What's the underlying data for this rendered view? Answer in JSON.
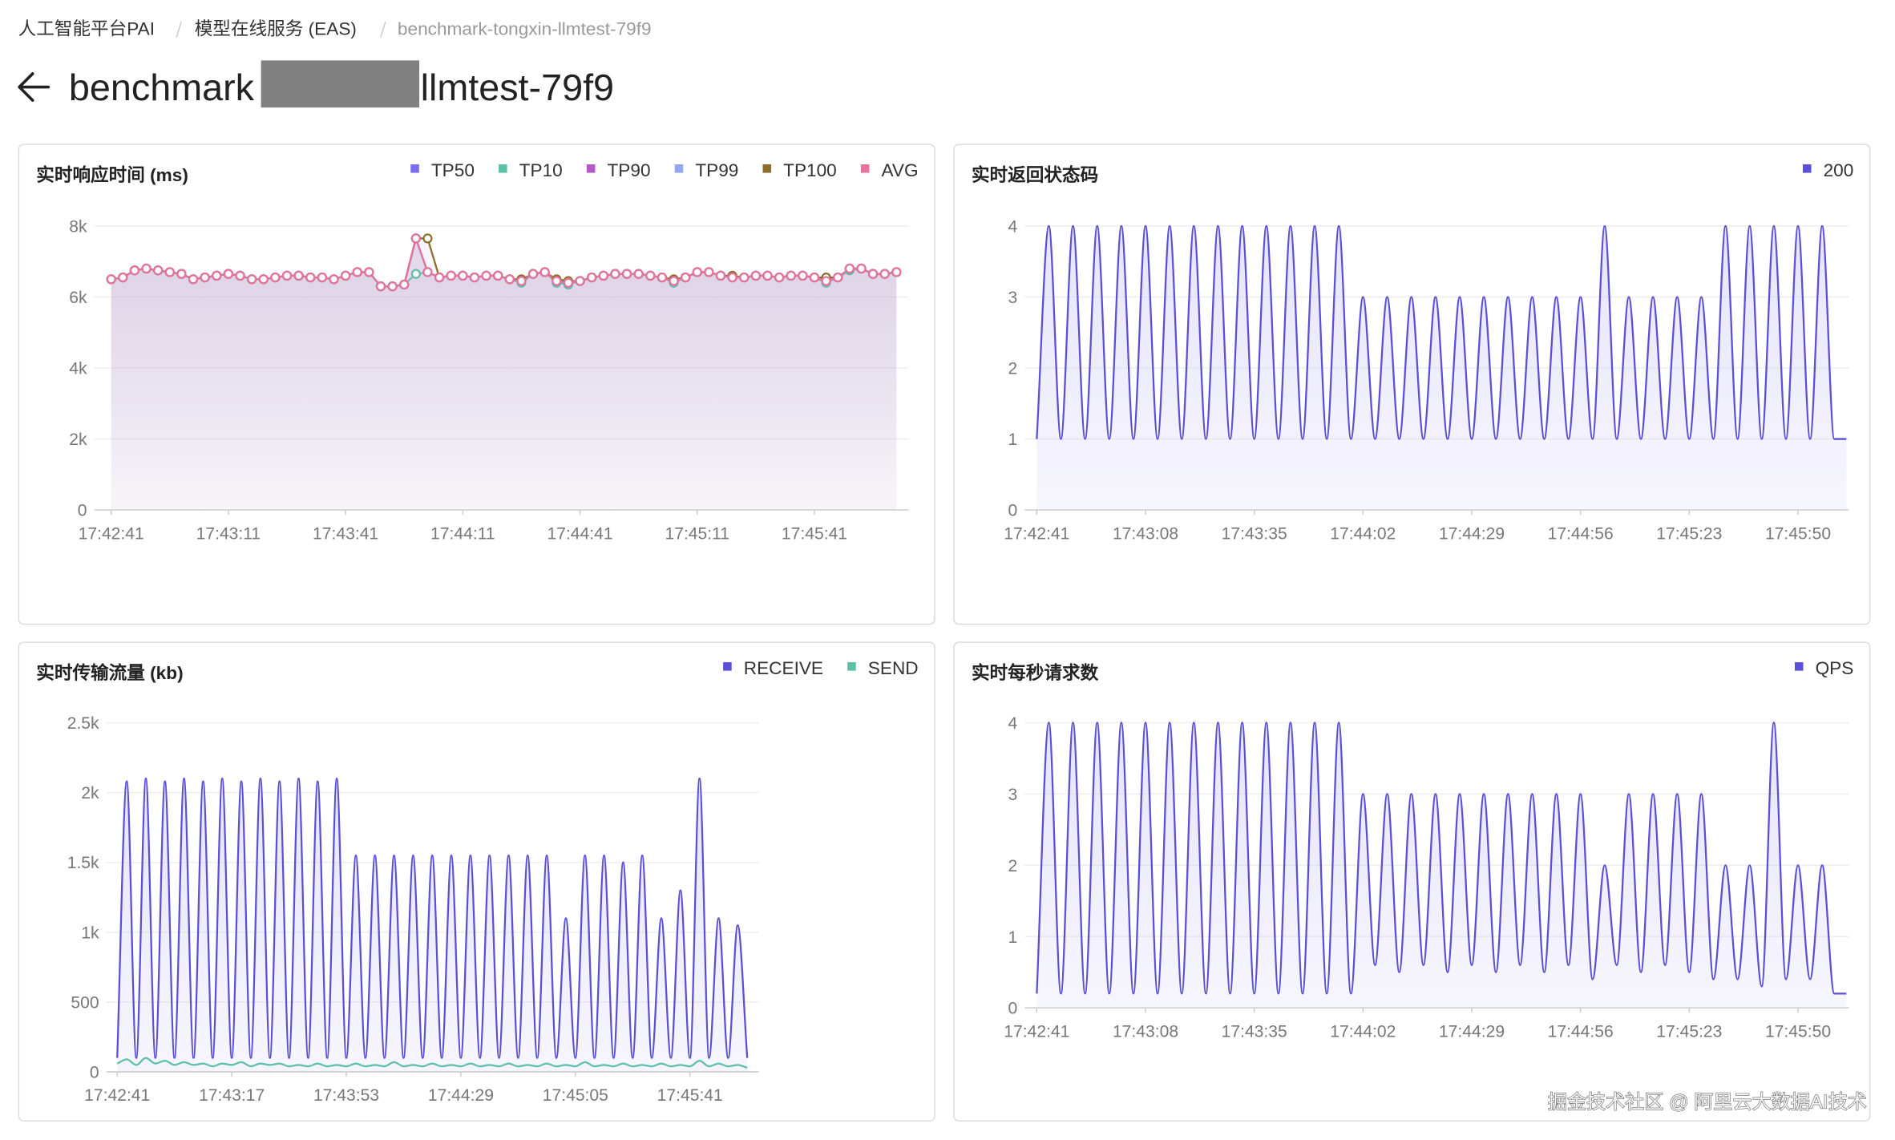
{
  "header": {
    "breadcrumb": [
      "人工智能平台PAI",
      "模型在线服务 (EAS)",
      "benchmark-tongxin-llmtest-79f9"
    ],
    "title_prefix": "benchmark",
    "title_suffix": "llmtest-79f9"
  },
  "chart_data": [
    {
      "type": "line",
      "title": "实时响应时间 (ms)",
      "markers": true,
      "area": true,
      "smooth": false,
      "grid": true,
      "categories": [
        "17:42:41",
        null,
        null,
        null,
        null,
        null,
        null,
        null,
        null,
        null,
        "17:43:11",
        null,
        null,
        null,
        null,
        null,
        null,
        null,
        null,
        null,
        "17:43:41",
        null,
        null,
        null,
        null,
        null,
        null,
        null,
        null,
        null,
        "17:44:11",
        null,
        null,
        null,
        null,
        null,
        null,
        null,
        null,
        null,
        "17:44:41",
        null,
        null,
        null,
        null,
        null,
        null,
        null,
        null,
        null,
        "17:45:11",
        null,
        null,
        null,
        null,
        null,
        null,
        null,
        null,
        null,
        "17:45:41",
        null,
        null,
        null,
        null,
        null,
        null,
        null
      ],
      "ylim": [
        0,
        8000
      ],
      "yticks": [
        0,
        {
          "value": 2000,
          "label": "2k"
        },
        {
          "value": 4000,
          "label": "4k"
        },
        {
          "value": 6000,
          "label": "6k"
        },
        {
          "value": 8000,
          "label": "8k"
        }
      ],
      "series": [
        {
          "name": "TP50",
          "color": "#7b6ff0",
          "values": [
            6500,
            6550,
            6750,
            6800,
            6750,
            6700,
            6650,
            6500,
            6550,
            6600,
            6650,
            6600,
            6500,
            6500,
            6550,
            6600,
            6600,
            6550,
            6550,
            6500,
            6600,
            6700,
            6700,
            6300,
            6300,
            6350,
            7650,
            6700,
            6550,
            6600,
            6600,
            6550,
            6600,
            6600,
            6500,
            6450,
            6650,
            6700,
            6450,
            6400,
            6450,
            6550,
            6600,
            6650,
            6650,
            6650,
            6600,
            6550,
            6450,
            6550,
            6700,
            6700,
            6600,
            6550,
            6550,
            6600,
            6600,
            6550,
            6600,
            6600,
            6550,
            6450,
            6550,
            6800,
            6800,
            6650,
            6650,
            6700
          ]
        },
        {
          "name": "TP10",
          "color": "#5cbfa8",
          "values": [
            6500,
            6550,
            6750,
            6800,
            6750,
            6700,
            6650,
            6500,
            6550,
            6600,
            6650,
            6600,
            6500,
            6500,
            6550,
            6600,
            6600,
            6550,
            6550,
            6500,
            6600,
            6700,
            6700,
            6300,
            6300,
            6350,
            6650,
            6700,
            6550,
            6600,
            6600,
            6550,
            6600,
            6600,
            6500,
            6400,
            6650,
            6700,
            6400,
            6350,
            6450,
            6550,
            6600,
            6650,
            6650,
            6650,
            6600,
            6550,
            6400,
            6550,
            6700,
            6700,
            6600,
            6550,
            6550,
            6600,
            6600,
            6550,
            6600,
            6600,
            6550,
            6400,
            6550,
            6750,
            6800,
            6650,
            6650,
            6700
          ]
        },
        {
          "name": "TP90",
          "color": "#b25cc4",
          "values": [
            6500,
            6550,
            6750,
            6800,
            6750,
            6700,
            6650,
            6500,
            6550,
            6600,
            6650,
            6600,
            6500,
            6500,
            6550,
            6600,
            6600,
            6550,
            6550,
            6500,
            6600,
            6700,
            6700,
            6300,
            6300,
            6350,
            7650,
            6700,
            6550,
            6600,
            6600,
            6550,
            6600,
            6600,
            6500,
            6450,
            6650,
            6700,
            6450,
            6400,
            6450,
            6550,
            6600,
            6650,
            6650,
            6650,
            6600,
            6550,
            6450,
            6550,
            6700,
            6700,
            6600,
            6550,
            6550,
            6600,
            6600,
            6550,
            6600,
            6600,
            6550,
            6450,
            6550,
            6800,
            6800,
            6650,
            6650,
            6700
          ]
        },
        {
          "name": "TP99",
          "color": "#8fa8f0",
          "values": [
            6500,
            6550,
            6750,
            6800,
            6750,
            6700,
            6650,
            6500,
            6550,
            6600,
            6650,
            6600,
            6500,
            6500,
            6550,
            6600,
            6600,
            6550,
            6550,
            6500,
            6600,
            6700,
            6700,
            6300,
            6300,
            6350,
            7650,
            6700,
            6550,
            6600,
            6600,
            6550,
            6600,
            6600,
            6500,
            6450,
            6650,
            6700,
            6450,
            6400,
            6450,
            6550,
            6600,
            6650,
            6650,
            6650,
            6600,
            6550,
            6450,
            6550,
            6700,
            6700,
            6600,
            6550,
            6550,
            6600,
            6600,
            6550,
            6600,
            6600,
            6550,
            6450,
            6550,
            6800,
            6800,
            6650,
            6650,
            6700
          ]
        },
        {
          "name": "TP100",
          "color": "#8b6f2e",
          "values": [
            6500,
            6550,
            6750,
            6800,
            6750,
            6700,
            6650,
            6500,
            6550,
            6600,
            6650,
            6600,
            6500,
            6500,
            6550,
            6600,
            6600,
            6550,
            6550,
            6500,
            6600,
            6700,
            6700,
            6300,
            6300,
            6350,
            7650,
            7650,
            6550,
            6600,
            6600,
            6550,
            6600,
            6600,
            6500,
            6500,
            6650,
            6700,
            6500,
            6450,
            6450,
            6550,
            6600,
            6650,
            6650,
            6650,
            6600,
            6550,
            6500,
            6550,
            6700,
            6700,
            6600,
            6600,
            6550,
            6600,
            6600,
            6550,
            6600,
            6600,
            6550,
            6550,
            6550,
            6800,
            6800,
            6650,
            6650,
            6700
          ]
        },
        {
          "name": "AVG",
          "color": "#e5739c",
          "values": [
            6500,
            6550,
            6750,
            6800,
            6750,
            6700,
            6650,
            6500,
            6550,
            6600,
            6650,
            6600,
            6500,
            6500,
            6550,
            6600,
            6600,
            6550,
            6550,
            6500,
            6600,
            6700,
            6700,
            6300,
            6300,
            6350,
            7650,
            6700,
            6550,
            6600,
            6600,
            6550,
            6600,
            6600,
            6500,
            6450,
            6650,
            6700,
            6450,
            6400,
            6450,
            6550,
            6600,
            6650,
            6650,
            6650,
            6600,
            6550,
            6450,
            6550,
            6700,
            6700,
            6600,
            6550,
            6550,
            6600,
            6600,
            6550,
            6600,
            6600,
            6550,
            6450,
            6550,
            6800,
            6800,
            6650,
            6650,
            6700
          ]
        }
      ]
    },
    {
      "type": "line",
      "title": "实时返回状态码",
      "markers": false,
      "area": true,
      "smooth": true,
      "grid": true,
      "categories": [
        "17:42:41",
        null,
        null,
        null,
        null,
        null,
        null,
        null,
        null,
        "17:43:08",
        null,
        null,
        null,
        null,
        null,
        null,
        null,
        null,
        "17:43:35",
        null,
        null,
        null,
        null,
        null,
        null,
        null,
        null,
        "17:44:02",
        null,
        null,
        null,
        null,
        null,
        null,
        null,
        null,
        "17:44:29",
        null,
        null,
        null,
        null,
        null,
        null,
        null,
        null,
        "17:44:56",
        null,
        null,
        null,
        null,
        null,
        null,
        null,
        null,
        "17:45:23",
        null,
        null,
        null,
        null,
        null,
        null,
        null,
        null,
        "17:45:50",
        null,
        null,
        null,
        null
      ],
      "ylim": [
        0,
        4
      ],
      "yticks": [
        0,
        1,
        2,
        3,
        4
      ],
      "series": [
        {
          "name": "200",
          "color": "#5b4fd6",
          "values": [
            1,
            4,
            1,
            4,
            1,
            4,
            1,
            4,
            1,
            4,
            1,
            4,
            1,
            4,
            1,
            4,
            1,
            4,
            1,
            4,
            1,
            4,
            1,
            4,
            1,
            4,
            1,
            3,
            1,
            3,
            1,
            3,
            1,
            3,
            1,
            3,
            1,
            3,
            1,
            3,
            1,
            3,
            1,
            3,
            1,
            3,
            1,
            4,
            1,
            3,
            1,
            3,
            1,
            3,
            1,
            3,
            1,
            4,
            1,
            4,
            1,
            4,
            1,
            4,
            1,
            4,
            1,
            1
          ]
        }
      ]
    },
    {
      "type": "line",
      "title": "实时传输流量 (kb)",
      "markers": false,
      "area": true,
      "smooth": true,
      "grid": true,
      "categories": [
        "17:42:41",
        null,
        null,
        null,
        null,
        null,
        null,
        null,
        null,
        null,
        null,
        null,
        "17:43:17",
        null,
        null,
        null,
        null,
        null,
        null,
        null,
        null,
        null,
        null,
        null,
        "17:43:53",
        null,
        null,
        null,
        null,
        null,
        null,
        null,
        null,
        null,
        null,
        null,
        "17:44:29",
        null,
        null,
        null,
        null,
        null,
        null,
        null,
        null,
        null,
        null,
        null,
        "17:45:05",
        null,
        null,
        null,
        null,
        null,
        null,
        null,
        null,
        null,
        null,
        null,
        "17:45:41",
        null,
        null,
        null,
        null,
        null,
        null
      ],
      "ylim": [
        0,
        2500
      ],
      "yticks": [
        0,
        500,
        {
          "value": 1000,
          "label": "1k"
        },
        {
          "value": 1500,
          "label": "1.5k"
        },
        {
          "value": 2000,
          "label": "2k"
        },
        {
          "value": 2500,
          "label": "2.5k"
        }
      ],
      "series": [
        {
          "name": "RECEIVE",
          "color": "#5b4fd6",
          "values": [
            100,
            2080,
            100,
            2100,
            100,
            2080,
            100,
            2100,
            100,
            2080,
            100,
            2100,
            100,
            2080,
            100,
            2100,
            100,
            2080,
            100,
            2100,
            100,
            2080,
            100,
            2100,
            100,
            1550,
            100,
            1550,
            100,
            1550,
            100,
            1550,
            100,
            1550,
            100,
            1550,
            100,
            1550,
            100,
            1550,
            100,
            1550,
            100,
            1550,
            100,
            1550,
            100,
            1100,
            100,
            1550,
            100,
            1550,
            100,
            1500,
            100,
            1550,
            100,
            1100,
            100,
            1300,
            100,
            2100,
            100,
            1100,
            100,
            1050,
            100
          ]
        },
        {
          "name": "SEND",
          "color": "#5cbfa8",
          "values": [
            60,
            90,
            50,
            100,
            60,
            80,
            50,
            70,
            50,
            60,
            40,
            60,
            50,
            70,
            40,
            60,
            50,
            60,
            40,
            50,
            40,
            60,
            40,
            50,
            40,
            60,
            40,
            50,
            40,
            70,
            40,
            50,
            40,
            60,
            40,
            50,
            40,
            60,
            40,
            50,
            40,
            60,
            40,
            50,
            40,
            60,
            40,
            50,
            40,
            70,
            40,
            50,
            40,
            60,
            40,
            50,
            40,
            60,
            40,
            50,
            40,
            80,
            40,
            60,
            40,
            50,
            30
          ]
        }
      ]
    },
    {
      "type": "line",
      "title": "实时每秒请求数",
      "markers": false,
      "area": true,
      "smooth": true,
      "grid": true,
      "categories": [
        "17:42:41",
        null,
        null,
        null,
        null,
        null,
        null,
        null,
        null,
        "17:43:08",
        null,
        null,
        null,
        null,
        null,
        null,
        null,
        null,
        "17:43:35",
        null,
        null,
        null,
        null,
        null,
        null,
        null,
        null,
        "17:44:02",
        null,
        null,
        null,
        null,
        null,
        null,
        null,
        null,
        "17:44:29",
        null,
        null,
        null,
        null,
        null,
        null,
        null,
        null,
        "17:44:56",
        null,
        null,
        null,
        null,
        null,
        null,
        null,
        null,
        "17:45:23",
        null,
        null,
        null,
        null,
        null,
        null,
        null,
        null,
        "17:45:50",
        null,
        null,
        null,
        null
      ],
      "ylim": [
        0,
        4
      ],
      "yticks": [
        0,
        1,
        2,
        3,
        4
      ],
      "series": [
        {
          "name": "QPS",
          "color": "#5b4fd6",
          "values": [
            0.2,
            4,
            0.2,
            4,
            0.2,
            4,
            0.2,
            4,
            0.2,
            4,
            0.2,
            4,
            0.2,
            4,
            0.2,
            4,
            0.2,
            4,
            0.2,
            4,
            0.2,
            4,
            0.2,
            4,
            0.2,
            4,
            0.2,
            3,
            0.6,
            3,
            0.5,
            3,
            0.6,
            3,
            0.5,
            3,
            0.6,
            3,
            0.5,
            3,
            0.6,
            3,
            0.5,
            3,
            0.6,
            3,
            0.4,
            2,
            0.6,
            3,
            0.5,
            3,
            0.6,
            3,
            0.5,
            3,
            0.4,
            2,
            0.4,
            2,
            0.3,
            4,
            0.4,
            2,
            0.4,
            2,
            0.2,
            0.2
          ]
        }
      ]
    }
  ],
  "watermark": "掘金技术社区 @ 阿里云大数据AI技术"
}
